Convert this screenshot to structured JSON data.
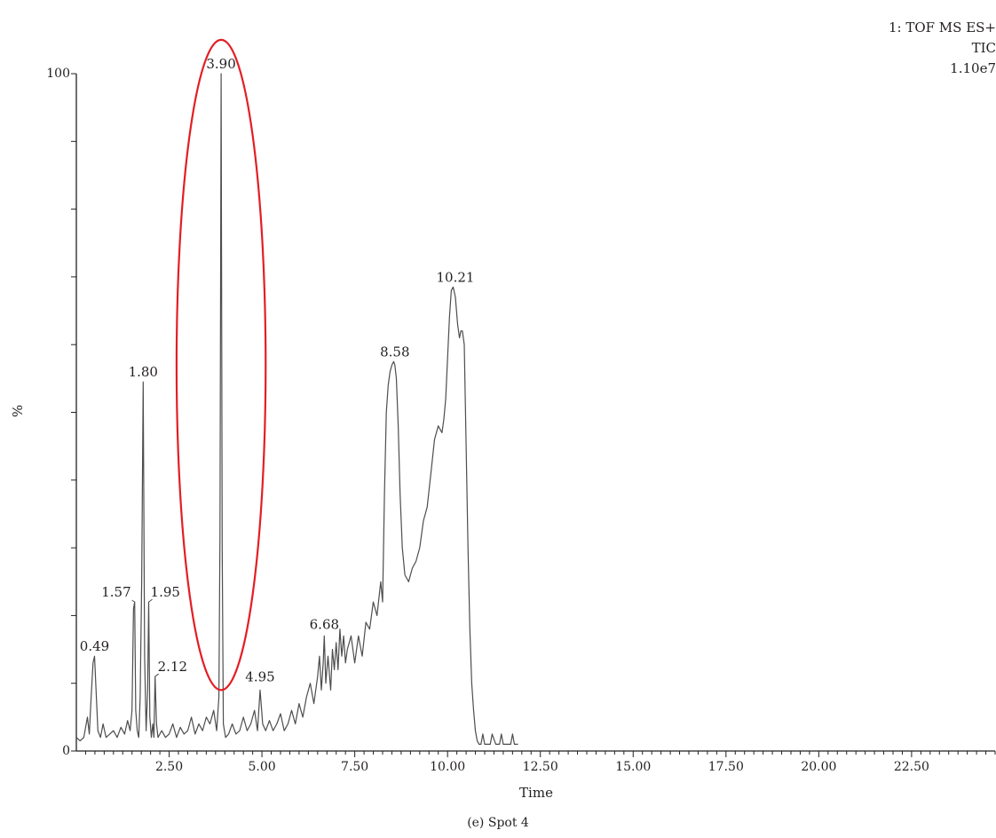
{
  "header": {
    "line1": "1: TOF MS ES+",
    "line2": "TIC",
    "line3": "1.10e7"
  },
  "caption": "(e)  Spot 4",
  "chart_data": {
    "type": "line",
    "xlabel": "Time",
    "ylabel": "%",
    "xlim": [
      0,
      24.75
    ],
    "ylim": [
      0,
      100
    ],
    "x_ticks": [
      "2.50",
      "5.00",
      "7.50",
      "10.00",
      "12.50",
      "15.00",
      "17.50",
      "20.00",
      "22.50"
    ],
    "y_tick_labels": [
      "0",
      "100"
    ],
    "series": [
      {
        "color": "#4d4d4d",
        "x": [
          0.0,
          0.1,
          0.2,
          0.3,
          0.35,
          0.4,
          0.45,
          0.49,
          0.53,
          0.58,
          0.65,
          0.72,
          0.8,
          0.9,
          1.0,
          1.1,
          1.2,
          1.3,
          1.38,
          1.45,
          1.5,
          1.54,
          1.57,
          1.6,
          1.64,
          1.68,
          1.72,
          1.76,
          1.8,
          1.84,
          1.88,
          1.92,
          1.95,
          1.98,
          2.02,
          2.06,
          2.09,
          2.12,
          2.16,
          2.2,
          2.3,
          2.4,
          2.5,
          2.6,
          2.7,
          2.8,
          2.9,
          3.0,
          3.1,
          3.2,
          3.3,
          3.4,
          3.5,
          3.6,
          3.7,
          3.78,
          3.84,
          3.87,
          3.9,
          3.93,
          3.96,
          4.02,
          4.1,
          4.2,
          4.3,
          4.4,
          4.5,
          4.6,
          4.7,
          4.8,
          4.88,
          4.95,
          5.02,
          5.1,
          5.2,
          5.3,
          5.4,
          5.5,
          5.6,
          5.7,
          5.8,
          5.9,
          6.0,
          6.1,
          6.2,
          6.3,
          6.4,
          6.5,
          6.55,
          6.6,
          6.65,
          6.68,
          6.72,
          6.78,
          6.85,
          6.9,
          6.95,
          7.0,
          7.05,
          7.1,
          7.15,
          7.2,
          7.25,
          7.3,
          7.4,
          7.5,
          7.6,
          7.7,
          7.8,
          7.9,
          8.0,
          8.1,
          8.2,
          8.25,
          8.3,
          8.35,
          8.4,
          8.45,
          8.5,
          8.55,
          8.58,
          8.62,
          8.67,
          8.72,
          8.78,
          8.85,
          8.95,
          9.05,
          9.15,
          9.25,
          9.35,
          9.45,
          9.55,
          9.65,
          9.75,
          9.85,
          9.9,
          9.95,
          10.0,
          10.05,
          10.1,
          10.15,
          10.21,
          10.27,
          10.32,
          10.36,
          10.4,
          10.45,
          10.5,
          10.55,
          10.6,
          10.65,
          10.7,
          10.75,
          10.8,
          10.85,
          10.9,
          10.95,
          11.0,
          11.05,
          11.1,
          11.15,
          11.2,
          11.3,
          11.35,
          11.4,
          11.45,
          11.5,
          11.55,
          11.6,
          11.7,
          11.75,
          11.8,
          11.85,
          11.9
        ],
        "y": [
          2.0,
          1.5,
          2.0,
          5.0,
          2.5,
          8.0,
          13.0,
          14.0,
          9.0,
          3.0,
          2.0,
          4.0,
          2.0,
          2.5,
          3.0,
          2.0,
          3.5,
          2.5,
          4.5,
          3.0,
          6.0,
          21.0,
          22.0,
          6.0,
          3.0,
          2.0,
          8.0,
          25.0,
          54.5,
          14.0,
          3.0,
          9.0,
          22.0,
          5.0,
          2.0,
          4.0,
          2.0,
          11.0,
          4.0,
          2.0,
          3.0,
          2.0,
          2.5,
          4.0,
          2.0,
          3.5,
          2.5,
          3.0,
          5.0,
          2.5,
          4.0,
          3.0,
          5.0,
          4.0,
          6.0,
          3.0,
          8.0,
          32.0,
          100.0,
          30.0,
          4.0,
          2.0,
          2.5,
          4.0,
          2.5,
          3.0,
          5.0,
          3.0,
          4.0,
          6.0,
          3.0,
          9.0,
          4.0,
          3.0,
          4.5,
          3.0,
          4.0,
          5.5,
          3.0,
          4.0,
          6.0,
          4.0,
          7.0,
          5.0,
          8.0,
          10.0,
          7.0,
          11.0,
          14.0,
          9.0,
          13.0,
          17.0,
          10.0,
          14.0,
          9.0,
          15.0,
          12.0,
          16.0,
          12.0,
          18.0,
          14.0,
          17.0,
          13.0,
          15.0,
          17.0,
          13.0,
          17.0,
          14.0,
          19.0,
          18.0,
          22.0,
          20.0,
          25.0,
          22.0,
          38.0,
          50.0,
          54.0,
          56.0,
          57.0,
          57.5,
          57.0,
          55.0,
          48.0,
          38.0,
          30.0,
          26.0,
          25.0,
          27.0,
          28.0,
          30.0,
          34.0,
          36.0,
          41.0,
          46.0,
          48.0,
          47.0,
          49.0,
          52.0,
          58.0,
          64.0,
          68.0,
          68.5,
          67.0,
          63.0,
          61.0,
          62.0,
          62.0,
          60.0,
          45.0,
          30.0,
          18.0,
          10.0,
          6.0,
          3.0,
          1.5,
          1.0,
          1.0,
          2.5,
          1.0,
          1.0,
          1.0,
          1.0,
          2.5,
          1.0,
          1.0,
          1.0,
          2.5,
          1.0,
          1.0,
          1.0,
          1.0,
          2.5,
          1.0,
          1.0,
          1.0
        ]
      }
    ],
    "peak_labels": [
      {
        "x": 0.49,
        "y": 14.0,
        "text": "0.49"
      },
      {
        "x": 1.57,
        "y": 22.0,
        "text": "1.57"
      },
      {
        "x": 1.8,
        "y": 54.5,
        "text": "1.80"
      },
      {
        "x": 1.95,
        "y": 22.0,
        "text": "1.95"
      },
      {
        "x": 2.12,
        "y": 11.0,
        "text": "2.12"
      },
      {
        "x": 3.9,
        "y": 100.0,
        "text": "3.90"
      },
      {
        "x": 4.95,
        "y": 9.0,
        "text": "4.95"
      },
      {
        "x": 6.68,
        "y": 17.0,
        "text": "6.68"
      },
      {
        "x": 8.58,
        "y": 57.5,
        "text": "8.58"
      },
      {
        "x": 10.21,
        "y": 68.5,
        "text": "10.21"
      }
    ],
    "highlight": {
      "shape": "ellipse",
      "x_range": [
        2.7,
        5.1
      ],
      "y_range": [
        9,
        105
      ],
      "color": "#e31e24"
    },
    "grid": false,
    "legend": "none"
  }
}
